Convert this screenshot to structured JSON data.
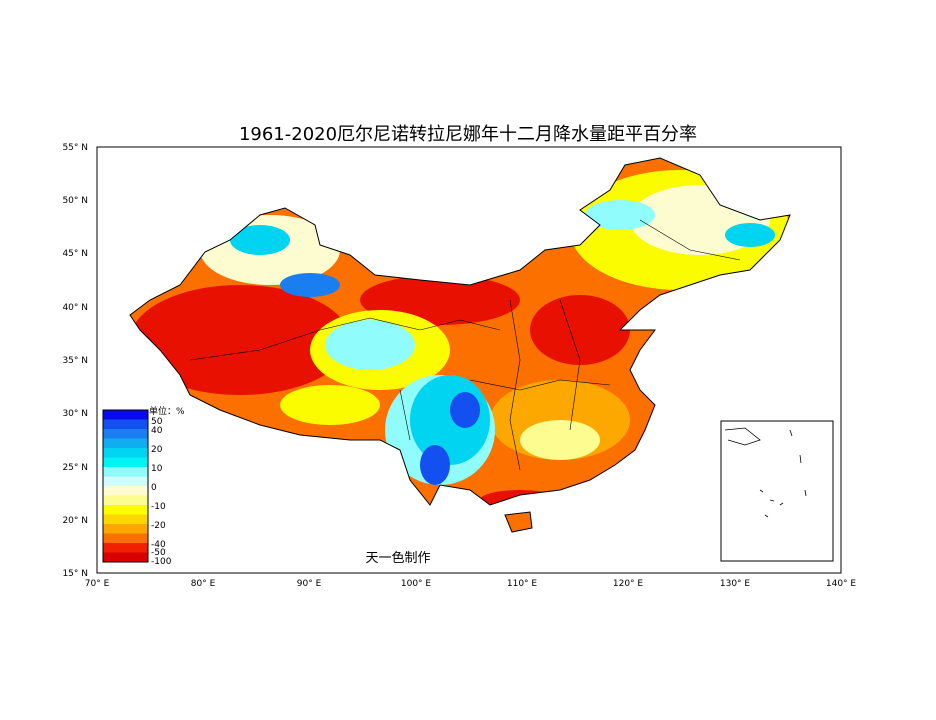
{
  "title": "1961-2020厄尔尼诺转拉尼娜年十二月降水量距平百分率",
  "credit": "天一色制作",
  "x_ticks": [
    "70° E",
    "80° E",
    "90° E",
    "100° E",
    "110° E",
    "120° E",
    "130° E",
    "140° E"
  ],
  "y_ticks": [
    "55° N",
    "50° N",
    "45° N",
    "40° N",
    "35° N",
    "30° N",
    "25° N",
    "20° N",
    "15° N"
  ],
  "legend": {
    "unit": "单位：%",
    "labels": [
      "50",
      "40",
      "20",
      "10",
      "0",
      "-10",
      "-20",
      "-40",
      "-50",
      "-100"
    ],
    "colors": [
      "#0a0aef",
      "#1450f0",
      "#1a7ef0",
      "#10aef0",
      "#00d4f0",
      "#00f4f4",
      "#90fcfc",
      "#d0fcfc",
      "#fcfcd0",
      "#fcfc90",
      "#fcfc00",
      "#fcd800",
      "#fca800",
      "#fc7000",
      "#f02000",
      "#d80000"
    ]
  },
  "colors": {
    "dry": "#e81000",
    "wet": "#1040e8"
  }
}
